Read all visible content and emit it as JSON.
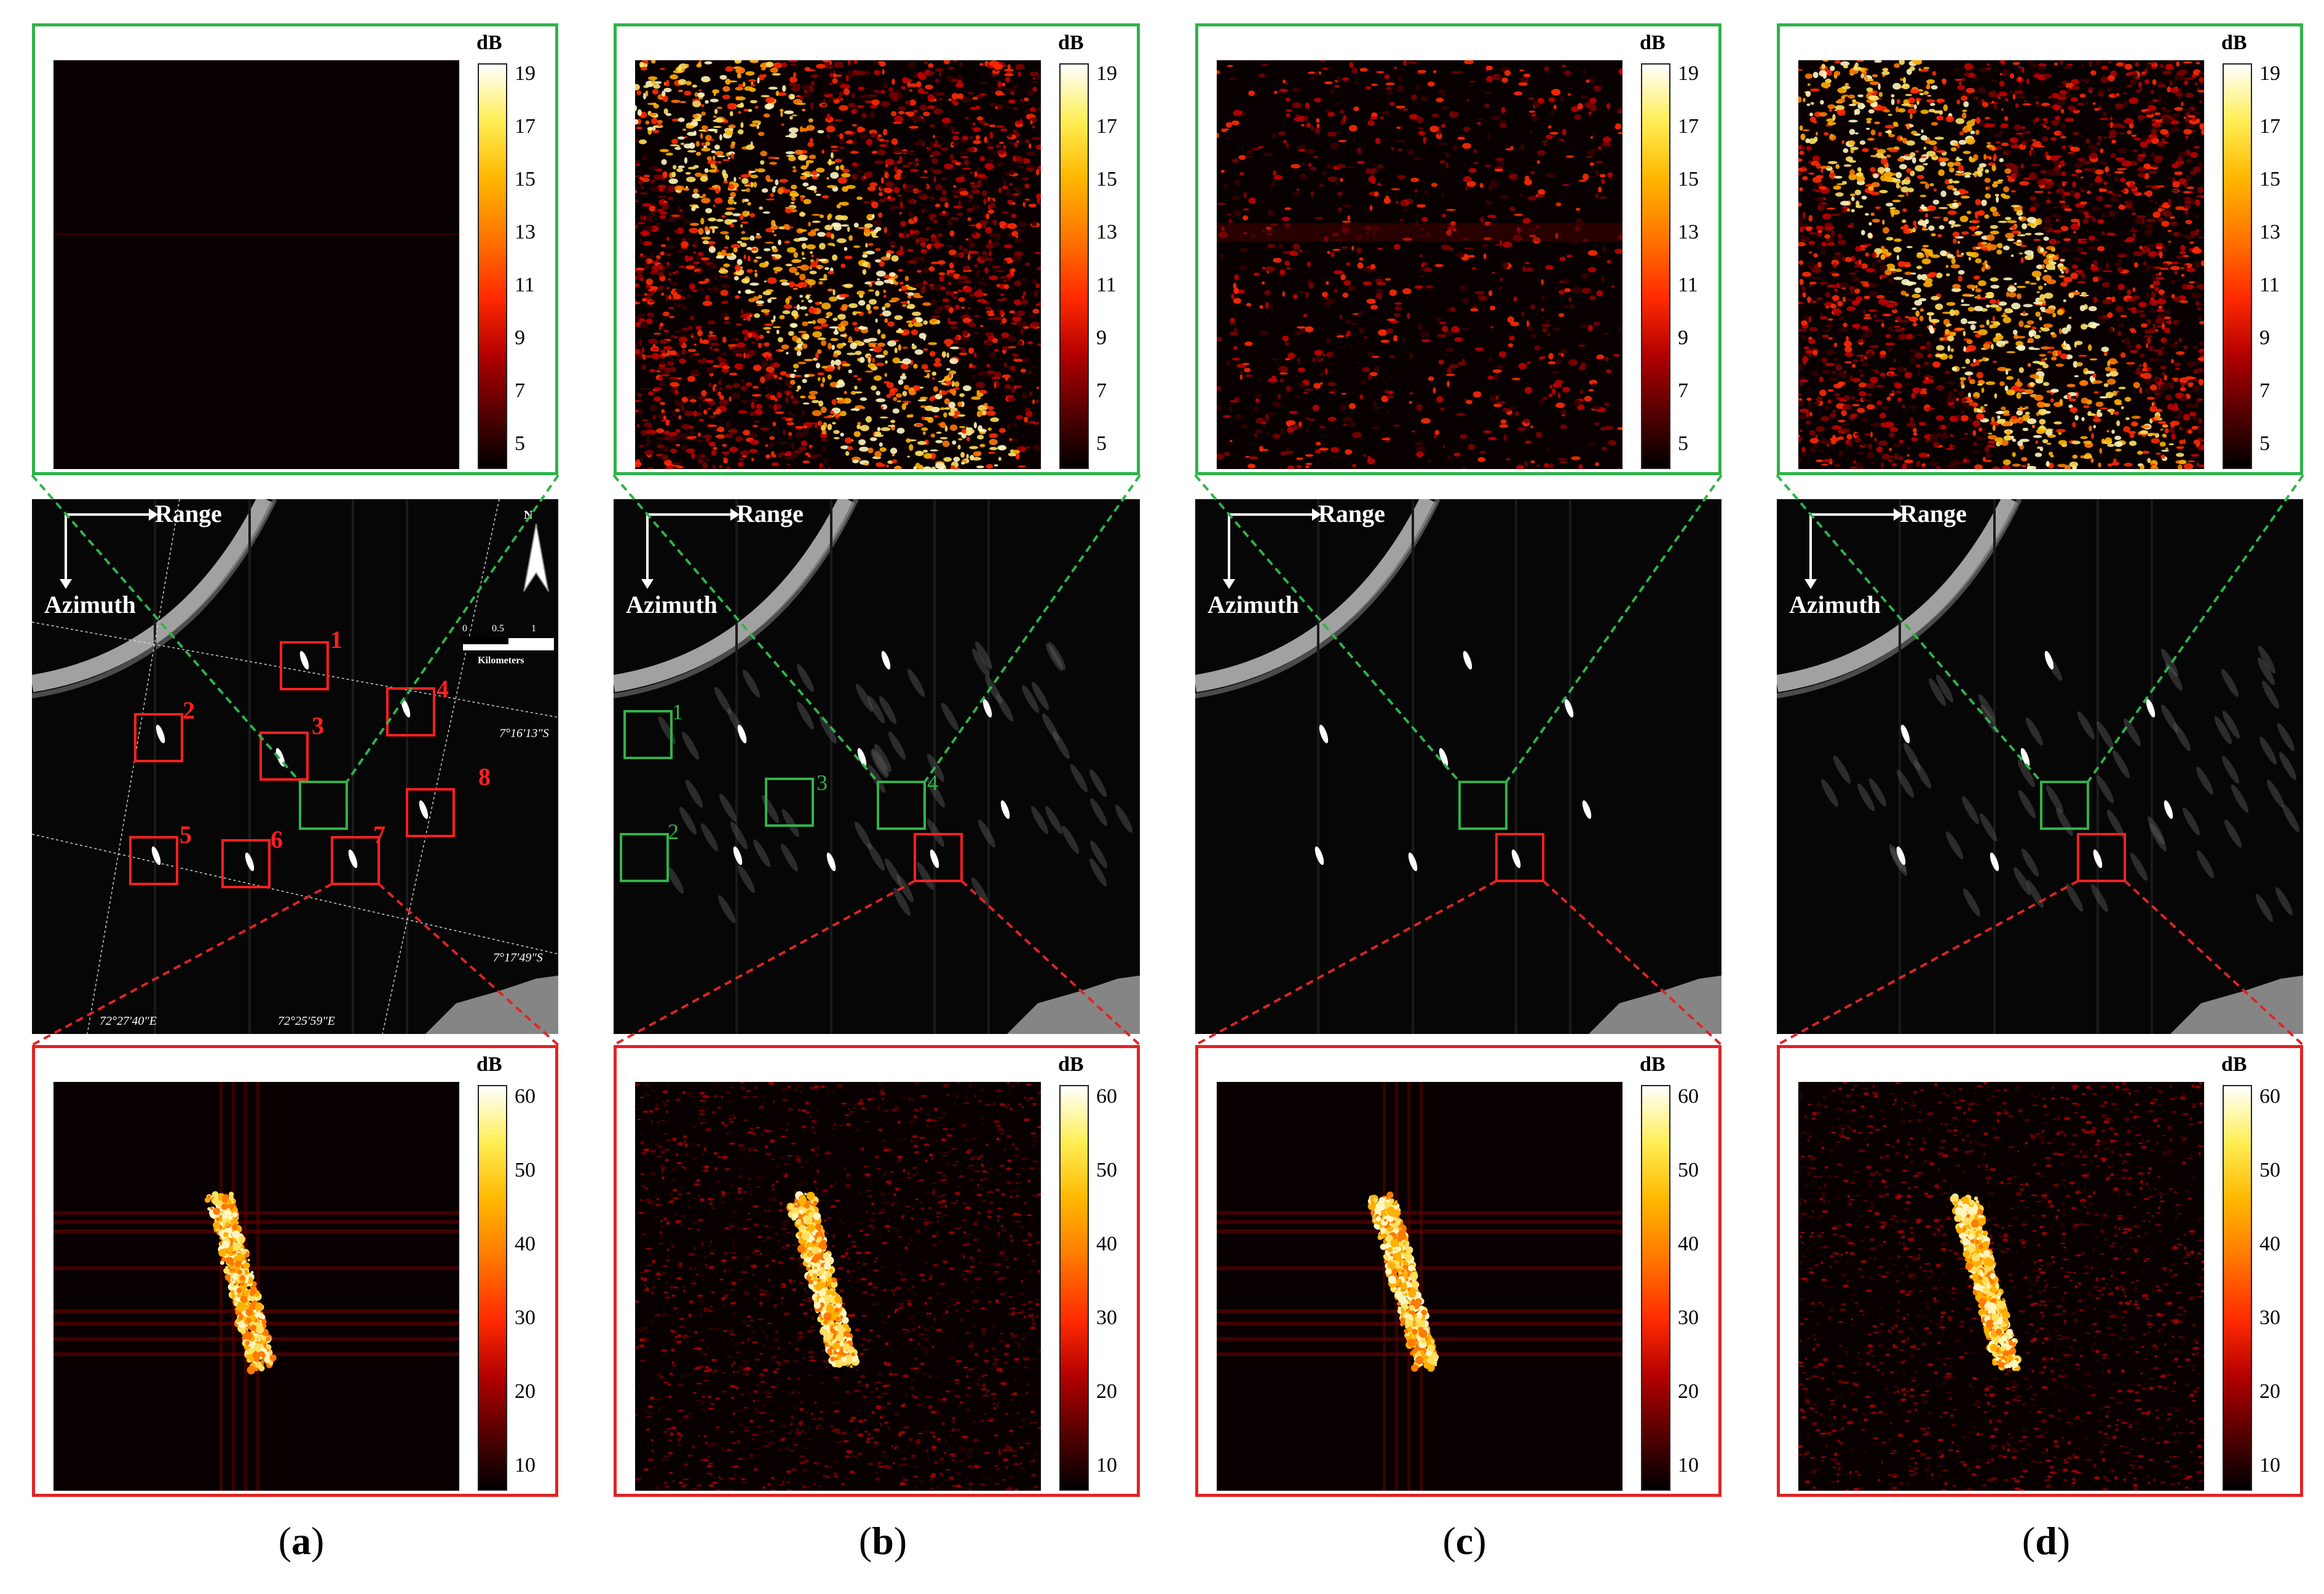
{
  "panels": [
    {
      "id": "a",
      "label": "a",
      "top_colorbar": {
        "unit": "dB",
        "ticks": [
          "19",
          "17",
          "15",
          "13",
          "11",
          "9",
          "7",
          "5"
        ]
      },
      "bottom_colorbar": {
        "unit": "dB",
        "ticks": [
          "60",
          "50",
          "40",
          "30",
          "20",
          "10"
        ]
      },
      "top_map": "dark",
      "red_numbers": [
        "1",
        "2",
        "3",
        "4",
        "5",
        "6",
        "7",
        "8"
      ],
      "green_numbers": []
    },
    {
      "id": "b",
      "label": "b",
      "top_colorbar": {
        "unit": "dB",
        "ticks": [
          "19",
          "17",
          "15",
          "13",
          "11",
          "9",
          "7",
          "5"
        ]
      },
      "bottom_colorbar": {
        "unit": "dB",
        "ticks": [
          "60",
          "50",
          "40",
          "30",
          "20",
          "10"
        ]
      },
      "top_map": "band",
      "red_numbers": [],
      "green_numbers": [
        "1",
        "2",
        "3",
        "4"
      ]
    },
    {
      "id": "c",
      "label": "c",
      "top_colorbar": {
        "unit": "dB",
        "ticks": [
          "19",
          "17",
          "15",
          "13",
          "11",
          "9",
          "7",
          "5"
        ]
      },
      "bottom_colorbar": {
        "unit": "dB",
        "ticks": [
          "60",
          "50",
          "40",
          "30",
          "20",
          "10"
        ]
      },
      "top_map": "speckle",
      "red_numbers": [],
      "green_numbers": []
    },
    {
      "id": "d",
      "label": "d",
      "top_colorbar": {
        "unit": "dB",
        "ticks": [
          "19",
          "17",
          "15",
          "13",
          "11",
          "9",
          "7",
          "5"
        ]
      },
      "bottom_colorbar": {
        "unit": "dB",
        "ticks": [
          "60",
          "50",
          "40",
          "30",
          "20",
          "10"
        ]
      },
      "top_map": "band",
      "red_numbers": [],
      "green_numbers": []
    }
  ],
  "sar_labels": {
    "range": "Range",
    "azimuth": "Azimuth"
  },
  "panel_a_annotations": {
    "lat1": "7°16′13″S",
    "lat2": "7°17′49″S",
    "lon1": "72°27′40″E",
    "lon2": "72°25′59″E",
    "scale_ticks": [
      "0",
      "0.5",
      "1"
    ],
    "scale_unit": "Kilometers",
    "north": "N"
  },
  "colors": {
    "green_box": "#2fb34a",
    "red_box": "#e02424"
  }
}
